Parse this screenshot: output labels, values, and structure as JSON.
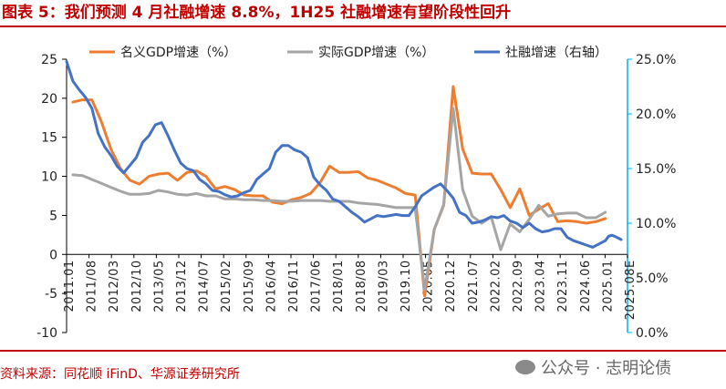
{
  "header": {
    "title": "图表 5：我们预测 4 月社融增速 8.8%，1H25 社融增速有望阶段性回升"
  },
  "footer": {
    "source": "资料来源：同花顺 iFinD、华源证券研究所",
    "watermark": "公众号 · 志明论债"
  },
  "chart_data": {
    "type": "line",
    "grid": false,
    "legend_placement": "top",
    "x_tick_labels": [
      "2011.01",
      "2011/08",
      "2012/03",
      "2012/10",
      "2013/05",
      "2013/12",
      "2014/07",
      "2015/02",
      "2015/09",
      "2016/04",
      "2016/11",
      "2017/06",
      "2018/01",
      "2018/08",
      "2019/03",
      "2019.10",
      "2020.05",
      "2020.12",
      "2021.07",
      "2022.02",
      "2022.09",
      "2023.04",
      "2023.11",
      "2024.06",
      "2025.01",
      "2025.08E"
    ],
    "left_axis": {
      "ticks": [
        "25",
        "20",
        "15",
        "10",
        "5",
        "0",
        "-5",
        "-10"
      ],
      "range": [
        -10,
        25
      ]
    },
    "right_axis": {
      "ticks": [
        "25.0%",
        "20.0%",
        "15.0%",
        "10.0%",
        "5.0%",
        "0.0%"
      ],
      "range": [
        0,
        25
      ]
    },
    "colors": {
      "nominal_gdp": "#ed7d31",
      "real_gdp": "#a5a5a5",
      "tsf": "#4472c4",
      "right_axis": "#00b0f0"
    },
    "series": [
      {
        "name": "名义GDP增速（%）",
        "axis": "left",
        "points": [
          [
            "2011-03",
            19.5
          ],
          [
            "2011-06",
            19.8
          ],
          [
            "2011-09",
            19.8
          ],
          [
            "2011-12",
            17.0
          ],
          [
            "2012-03",
            13.5
          ],
          [
            "2012-06",
            11.0
          ],
          [
            "2012-09",
            9.5
          ],
          [
            "2012-12",
            9.0
          ],
          [
            "2013-03",
            10.0
          ],
          [
            "2013-06",
            10.3
          ],
          [
            "2013-09",
            10.4
          ],
          [
            "2013-12",
            9.5
          ],
          [
            "2014-03",
            10.5
          ],
          [
            "2014-06",
            10.7
          ],
          [
            "2014-09",
            10.0
          ],
          [
            "2014-12",
            8.4
          ],
          [
            "2015-03",
            8.7
          ],
          [
            "2015-06",
            8.3
          ],
          [
            "2015-09",
            7.6
          ],
          [
            "2015-12",
            7.5
          ],
          [
            "2016-03",
            7.5
          ],
          [
            "2016-06",
            6.7
          ],
          [
            "2016-09",
            6.5
          ],
          [
            "2016-12",
            7.0
          ],
          [
            "2017-03",
            7.3
          ],
          [
            "2017-06",
            7.8
          ],
          [
            "2017-09",
            9.2
          ],
          [
            "2017-12",
            11.3
          ],
          [
            "2018-03",
            10.5
          ],
          [
            "2018-06",
            10.5
          ],
          [
            "2018-09",
            10.6
          ],
          [
            "2018-12",
            9.8
          ],
          [
            "2019-03",
            9.5
          ],
          [
            "2019-06",
            9.0
          ],
          [
            "2019-09",
            8.5
          ],
          [
            "2019-12",
            7.8
          ],
          [
            "2020-03",
            7.6
          ],
          [
            "2020-06",
            -5.3
          ],
          [
            "2020-09",
            3.2
          ],
          [
            "2020-12",
            6.3
          ],
          [
            "2021-03",
            21.5
          ],
          [
            "2021-06",
            13.5
          ],
          [
            "2021-09",
            10.4
          ],
          [
            "2021-12",
            10.3
          ],
          [
            "2022-03",
            10.3
          ],
          [
            "2022-06",
            8.3
          ],
          [
            "2022-09",
            6.0
          ],
          [
            "2022-12",
            8.4
          ],
          [
            "2023-03",
            5.0
          ],
          [
            "2023-06",
            5.8
          ],
          [
            "2023-09",
            6.5
          ],
          [
            "2023-12",
            4.2
          ],
          [
            "2024-03",
            4.3
          ],
          [
            "2024-06",
            4.2
          ],
          [
            "2024-09",
            4.0
          ],
          [
            "2024-12",
            4.2
          ],
          [
            "2025-03",
            4.6
          ]
        ]
      },
      {
        "name": "实际GDP增速（%）",
        "axis": "left",
        "points": [
          [
            "2011-03",
            10.2
          ],
          [
            "2011-06",
            10.1
          ],
          [
            "2011-09",
            9.6
          ],
          [
            "2011-12",
            9.1
          ],
          [
            "2012-03",
            8.6
          ],
          [
            "2012-06",
            8.1
          ],
          [
            "2012-09",
            7.7
          ],
          [
            "2012-12",
            7.7
          ],
          [
            "2013-03",
            7.8
          ],
          [
            "2013-06",
            8.2
          ],
          [
            "2013-09",
            8.0
          ],
          [
            "2013-12",
            7.7
          ],
          [
            "2014-03",
            7.6
          ],
          [
            "2014-06",
            7.8
          ],
          [
            "2014-09",
            7.5
          ],
          [
            "2014-12",
            7.5
          ],
          [
            "2015-03",
            7.1
          ],
          [
            "2015-06",
            7.1
          ],
          [
            "2015-09",
            7.0
          ],
          [
            "2015-12",
            7.0
          ],
          [
            "2016-03",
            6.9
          ],
          [
            "2016-06",
            6.9
          ],
          [
            "2016-09",
            6.8
          ],
          [
            "2016-12",
            6.8
          ],
          [
            "2017-03",
            6.9
          ],
          [
            "2017-06",
            6.9
          ],
          [
            "2017-09",
            6.9
          ],
          [
            "2017-12",
            6.8
          ],
          [
            "2018-03",
            6.8
          ],
          [
            "2018-06",
            6.8
          ],
          [
            "2018-09",
            6.6
          ],
          [
            "2018-12",
            6.5
          ],
          [
            "2019-03",
            6.4
          ],
          [
            "2019-06",
            6.2
          ],
          [
            "2019-09",
            6.0
          ],
          [
            "2019-12",
            6.0
          ],
          [
            "2020-03",
            6.0
          ],
          [
            "2020-06",
            -4.5
          ],
          [
            "2020-09",
            3.2
          ],
          [
            "2020-12",
            6.4
          ],
          [
            "2021-03",
            18.7
          ],
          [
            "2021-06",
            8.3
          ],
          [
            "2021-09",
            4.9
          ],
          [
            "2021-12",
            4.0
          ],
          [
            "2022-03",
            4.8
          ],
          [
            "2022-06",
            0.6
          ],
          [
            "2022-09",
            3.9
          ],
          [
            "2022-12",
            2.9
          ],
          [
            "2023-03",
            4.5
          ],
          [
            "2023-06",
            6.3
          ],
          [
            "2023-09",
            4.9
          ],
          [
            "2023-12",
            5.2
          ],
          [
            "2024-03",
            5.3
          ],
          [
            "2024-06",
            5.3
          ],
          [
            "2024-09",
            4.7
          ],
          [
            "2024-12",
            4.7
          ],
          [
            "2025-03",
            5.4
          ]
        ]
      },
      {
        "name": "社融增速（右轴）",
        "axis": "right",
        "points": [
          [
            "2011-01",
            24.8
          ],
          [
            "2011-03",
            23.0
          ],
          [
            "2011-05",
            22.2
          ],
          [
            "2011-07",
            21.5
          ],
          [
            "2011-09",
            20.5
          ],
          [
            "2011-11",
            18.2
          ],
          [
            "2012-01",
            17.0
          ],
          [
            "2012-03",
            16.2
          ],
          [
            "2012-05",
            15.2
          ],
          [
            "2012-07",
            14.6
          ],
          [
            "2012-09",
            15.3
          ],
          [
            "2012-11",
            16.0
          ],
          [
            "2013-01",
            17.4
          ],
          [
            "2013-03",
            18.0
          ],
          [
            "2013-05",
            19.0
          ],
          [
            "2013-07",
            19.2
          ],
          [
            "2013-09",
            18.0
          ],
          [
            "2013-11",
            16.7
          ],
          [
            "2014-01",
            15.5
          ],
          [
            "2014-03",
            15.0
          ],
          [
            "2014-05",
            14.8
          ],
          [
            "2014-07",
            14.0
          ],
          [
            "2014-09",
            13.6
          ],
          [
            "2014-11",
            13.0
          ],
          [
            "2015-01",
            12.9
          ],
          [
            "2015-03",
            12.6
          ],
          [
            "2015-05",
            12.4
          ],
          [
            "2015-07",
            12.5
          ],
          [
            "2015-09",
            12.8
          ],
          [
            "2015-11",
            13.0
          ],
          [
            "2016-01",
            14.0
          ],
          [
            "2016-03",
            14.5
          ],
          [
            "2016-05",
            15.0
          ],
          [
            "2016-07",
            16.5
          ],
          [
            "2016-09",
            17.1
          ],
          [
            "2016-11",
            17.1
          ],
          [
            "2017-01",
            16.7
          ],
          [
            "2017-03",
            16.5
          ],
          [
            "2017-05",
            16.0
          ],
          [
            "2017-07",
            14.2
          ],
          [
            "2017-09",
            13.5
          ],
          [
            "2017-11",
            13.0
          ],
          [
            "2018-01",
            12.2
          ],
          [
            "2018-03",
            12.0
          ],
          [
            "2018-05",
            11.5
          ],
          [
            "2018-07",
            11.0
          ],
          [
            "2018-09",
            10.6
          ],
          [
            "2018-11",
            10.1
          ],
          [
            "2019-01",
            10.4
          ],
          [
            "2019-03",
            10.7
          ],
          [
            "2019-05",
            10.6
          ],
          [
            "2019-07",
            10.7
          ],
          [
            "2019-09",
            10.8
          ],
          [
            "2019-11",
            10.7
          ],
          [
            "2020-01",
            10.7
          ],
          [
            "2020-03",
            11.5
          ],
          [
            "2020-05",
            12.5
          ],
          [
            "2020-07",
            12.9
          ],
          [
            "2020-09",
            13.3
          ],
          [
            "2020-11",
            13.6
          ],
          [
            "2021-01",
            13.0
          ],
          [
            "2021-03",
            12.3
          ],
          [
            "2021-05",
            11.0
          ],
          [
            "2021-07",
            10.7
          ],
          [
            "2021-09",
            10.0
          ],
          [
            "2021-11",
            10.1
          ],
          [
            "2022-01",
            10.3
          ],
          [
            "2022-03",
            10.6
          ],
          [
            "2022-05",
            10.5
          ],
          [
            "2022-07",
            10.7
          ],
          [
            "2022-09",
            10.2
          ],
          [
            "2022-11",
            10.0
          ],
          [
            "2023-01",
            9.6
          ],
          [
            "2023-03",
            10.0
          ],
          [
            "2023-05",
            9.5
          ],
          [
            "2023-07",
            9.2
          ],
          [
            "2023-09",
            9.3
          ],
          [
            "2023-11",
            9.5
          ],
          [
            "2024-01",
            9.5
          ],
          [
            "2024-03",
            8.7
          ],
          [
            "2024-05",
            8.4
          ],
          [
            "2024-07",
            8.2
          ],
          [
            "2024-09",
            8.0
          ],
          [
            "2024-11",
            7.8
          ],
          [
            "2025-01",
            8.1
          ],
          [
            "2025-03",
            8.4
          ],
          [
            "2025-04",
            8.8
          ],
          [
            "2025-05",
            8.9
          ],
          [
            "2025-06",
            8.8
          ],
          [
            "2025-08",
            8.5
          ]
        ]
      }
    ]
  }
}
